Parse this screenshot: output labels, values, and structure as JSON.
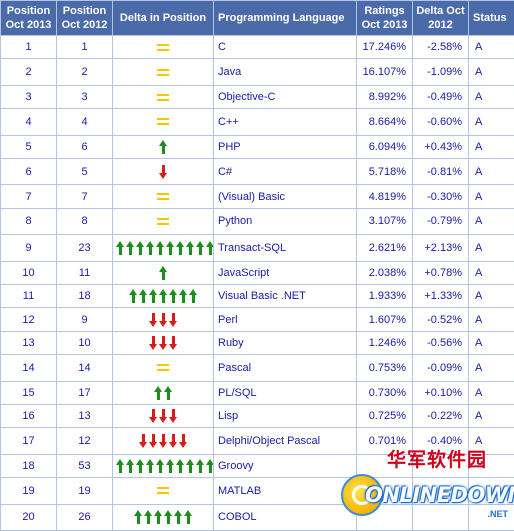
{
  "headers": {
    "pos_2013": "Position Oct 2013",
    "pos_2012": "Position Oct 2012",
    "delta": "Delta in Position",
    "language": "Programming Language",
    "ratings": "Ratings Oct 2013",
    "delta_ratings": "Delta Oct 2012",
    "status": "Status"
  },
  "colors": {
    "header_bg": "#4a6aaa",
    "text": "#1a1aa6",
    "border": "#b4c4e4",
    "up_arrow": "#1d8e1d",
    "down_arrow": "#d81b1b",
    "unchanged": "#f6c400"
  },
  "rows": [
    {
      "pos_2013": "1",
      "pos_2012": "1",
      "delta_dir": "same",
      "delta_count": 0,
      "language": "C",
      "ratings": "17.246%",
      "delta_ratings": "-2.58%",
      "status": "A"
    },
    {
      "pos_2013": "2",
      "pos_2012": "2",
      "delta_dir": "same",
      "delta_count": 0,
      "language": "Java",
      "ratings": "16.107%",
      "delta_ratings": "-1.09%",
      "status": "A"
    },
    {
      "pos_2013": "3",
      "pos_2012": "3",
      "delta_dir": "same",
      "delta_count": 0,
      "language": "Objective-C",
      "ratings": "8.992%",
      "delta_ratings": "-0.49%",
      "status": "A"
    },
    {
      "pos_2013": "4",
      "pos_2012": "4",
      "delta_dir": "same",
      "delta_count": 0,
      "language": "C++",
      "ratings": "8.664%",
      "delta_ratings": "-0.60%",
      "status": "A"
    },
    {
      "pos_2013": "5",
      "pos_2012": "6",
      "delta_dir": "up",
      "delta_count": 1,
      "language": "PHP",
      "ratings": "6.094%",
      "delta_ratings": "+0.43%",
      "status": "A"
    },
    {
      "pos_2013": "6",
      "pos_2012": "5",
      "delta_dir": "down",
      "delta_count": 1,
      "language": "C#",
      "ratings": "5.718%",
      "delta_ratings": "-0.81%",
      "status": "A"
    },
    {
      "pos_2013": "7",
      "pos_2012": "7",
      "delta_dir": "same",
      "delta_count": 0,
      "language": "(Visual) Basic",
      "ratings": "4.819%",
      "delta_ratings": "-0.30%",
      "status": "A"
    },
    {
      "pos_2013": "8",
      "pos_2012": "8",
      "delta_dir": "same",
      "delta_count": 0,
      "language": "Python",
      "ratings": "3.107%",
      "delta_ratings": "-0.79%",
      "status": "A"
    },
    {
      "pos_2013": "9",
      "pos_2012": "23",
      "delta_dir": "up",
      "delta_count": 10,
      "language": "Transact-SQL",
      "ratings": "2.621%",
      "delta_ratings": "+2.13%",
      "status": "A"
    },
    {
      "pos_2013": "10",
      "pos_2012": "11",
      "delta_dir": "up",
      "delta_count": 1,
      "language": "JavaScript",
      "ratings": "2.038%",
      "delta_ratings": "+0.78%",
      "status": "A"
    },
    {
      "pos_2013": "11",
      "pos_2012": "18",
      "delta_dir": "up",
      "delta_count": 7,
      "language": "Visual Basic .NET",
      "ratings": "1.933%",
      "delta_ratings": "+1.33%",
      "status": "A"
    },
    {
      "pos_2013": "12",
      "pos_2012": "9",
      "delta_dir": "down",
      "delta_count": 3,
      "language": "Perl",
      "ratings": "1.607%",
      "delta_ratings": "-0.52%",
      "status": "A"
    },
    {
      "pos_2013": "13",
      "pos_2012": "10",
      "delta_dir": "down",
      "delta_count": 3,
      "language": "Ruby",
      "ratings": "1.246%",
      "delta_ratings": "-0.56%",
      "status": "A"
    },
    {
      "pos_2013": "14",
      "pos_2012": "14",
      "delta_dir": "same",
      "delta_count": 0,
      "language": "Pascal",
      "ratings": "0.753%",
      "delta_ratings": "-0.09%",
      "status": "A"
    },
    {
      "pos_2013": "15",
      "pos_2012": "17",
      "delta_dir": "up",
      "delta_count": 2,
      "language": "PL/SQL",
      "ratings": "0.730%",
      "delta_ratings": "+0.10%",
      "status": "A"
    },
    {
      "pos_2013": "16",
      "pos_2012": "13",
      "delta_dir": "down",
      "delta_count": 3,
      "language": "Lisp",
      "ratings": "0.725%",
      "delta_ratings": "-0.22%",
      "status": "A"
    },
    {
      "pos_2013": "17",
      "pos_2012": "12",
      "delta_dir": "down",
      "delta_count": 5,
      "language": "Delphi/Object Pascal",
      "ratings": "0.701%",
      "delta_ratings": "-0.40%",
      "status": "A"
    },
    {
      "pos_2013": "18",
      "pos_2012": "53",
      "delta_dir": "up",
      "delta_count": 10,
      "language": "Groovy",
      "ratings": "",
      "delta_ratings": "",
      "status": ""
    },
    {
      "pos_2013": "19",
      "pos_2012": "19",
      "delta_dir": "same",
      "delta_count": 0,
      "language": "MATLAB",
      "ratings": "",
      "delta_ratings": "",
      "status": ""
    },
    {
      "pos_2013": "20",
      "pos_2012": "26",
      "delta_dir": "up",
      "delta_count": 6,
      "language": "COBOL",
      "ratings": "",
      "delta_ratings": "",
      "status": ""
    }
  ],
  "watermark": {
    "chinese": "华军软件园",
    "english": "ONLINEDOWN",
    "suffix": ".NET"
  }
}
